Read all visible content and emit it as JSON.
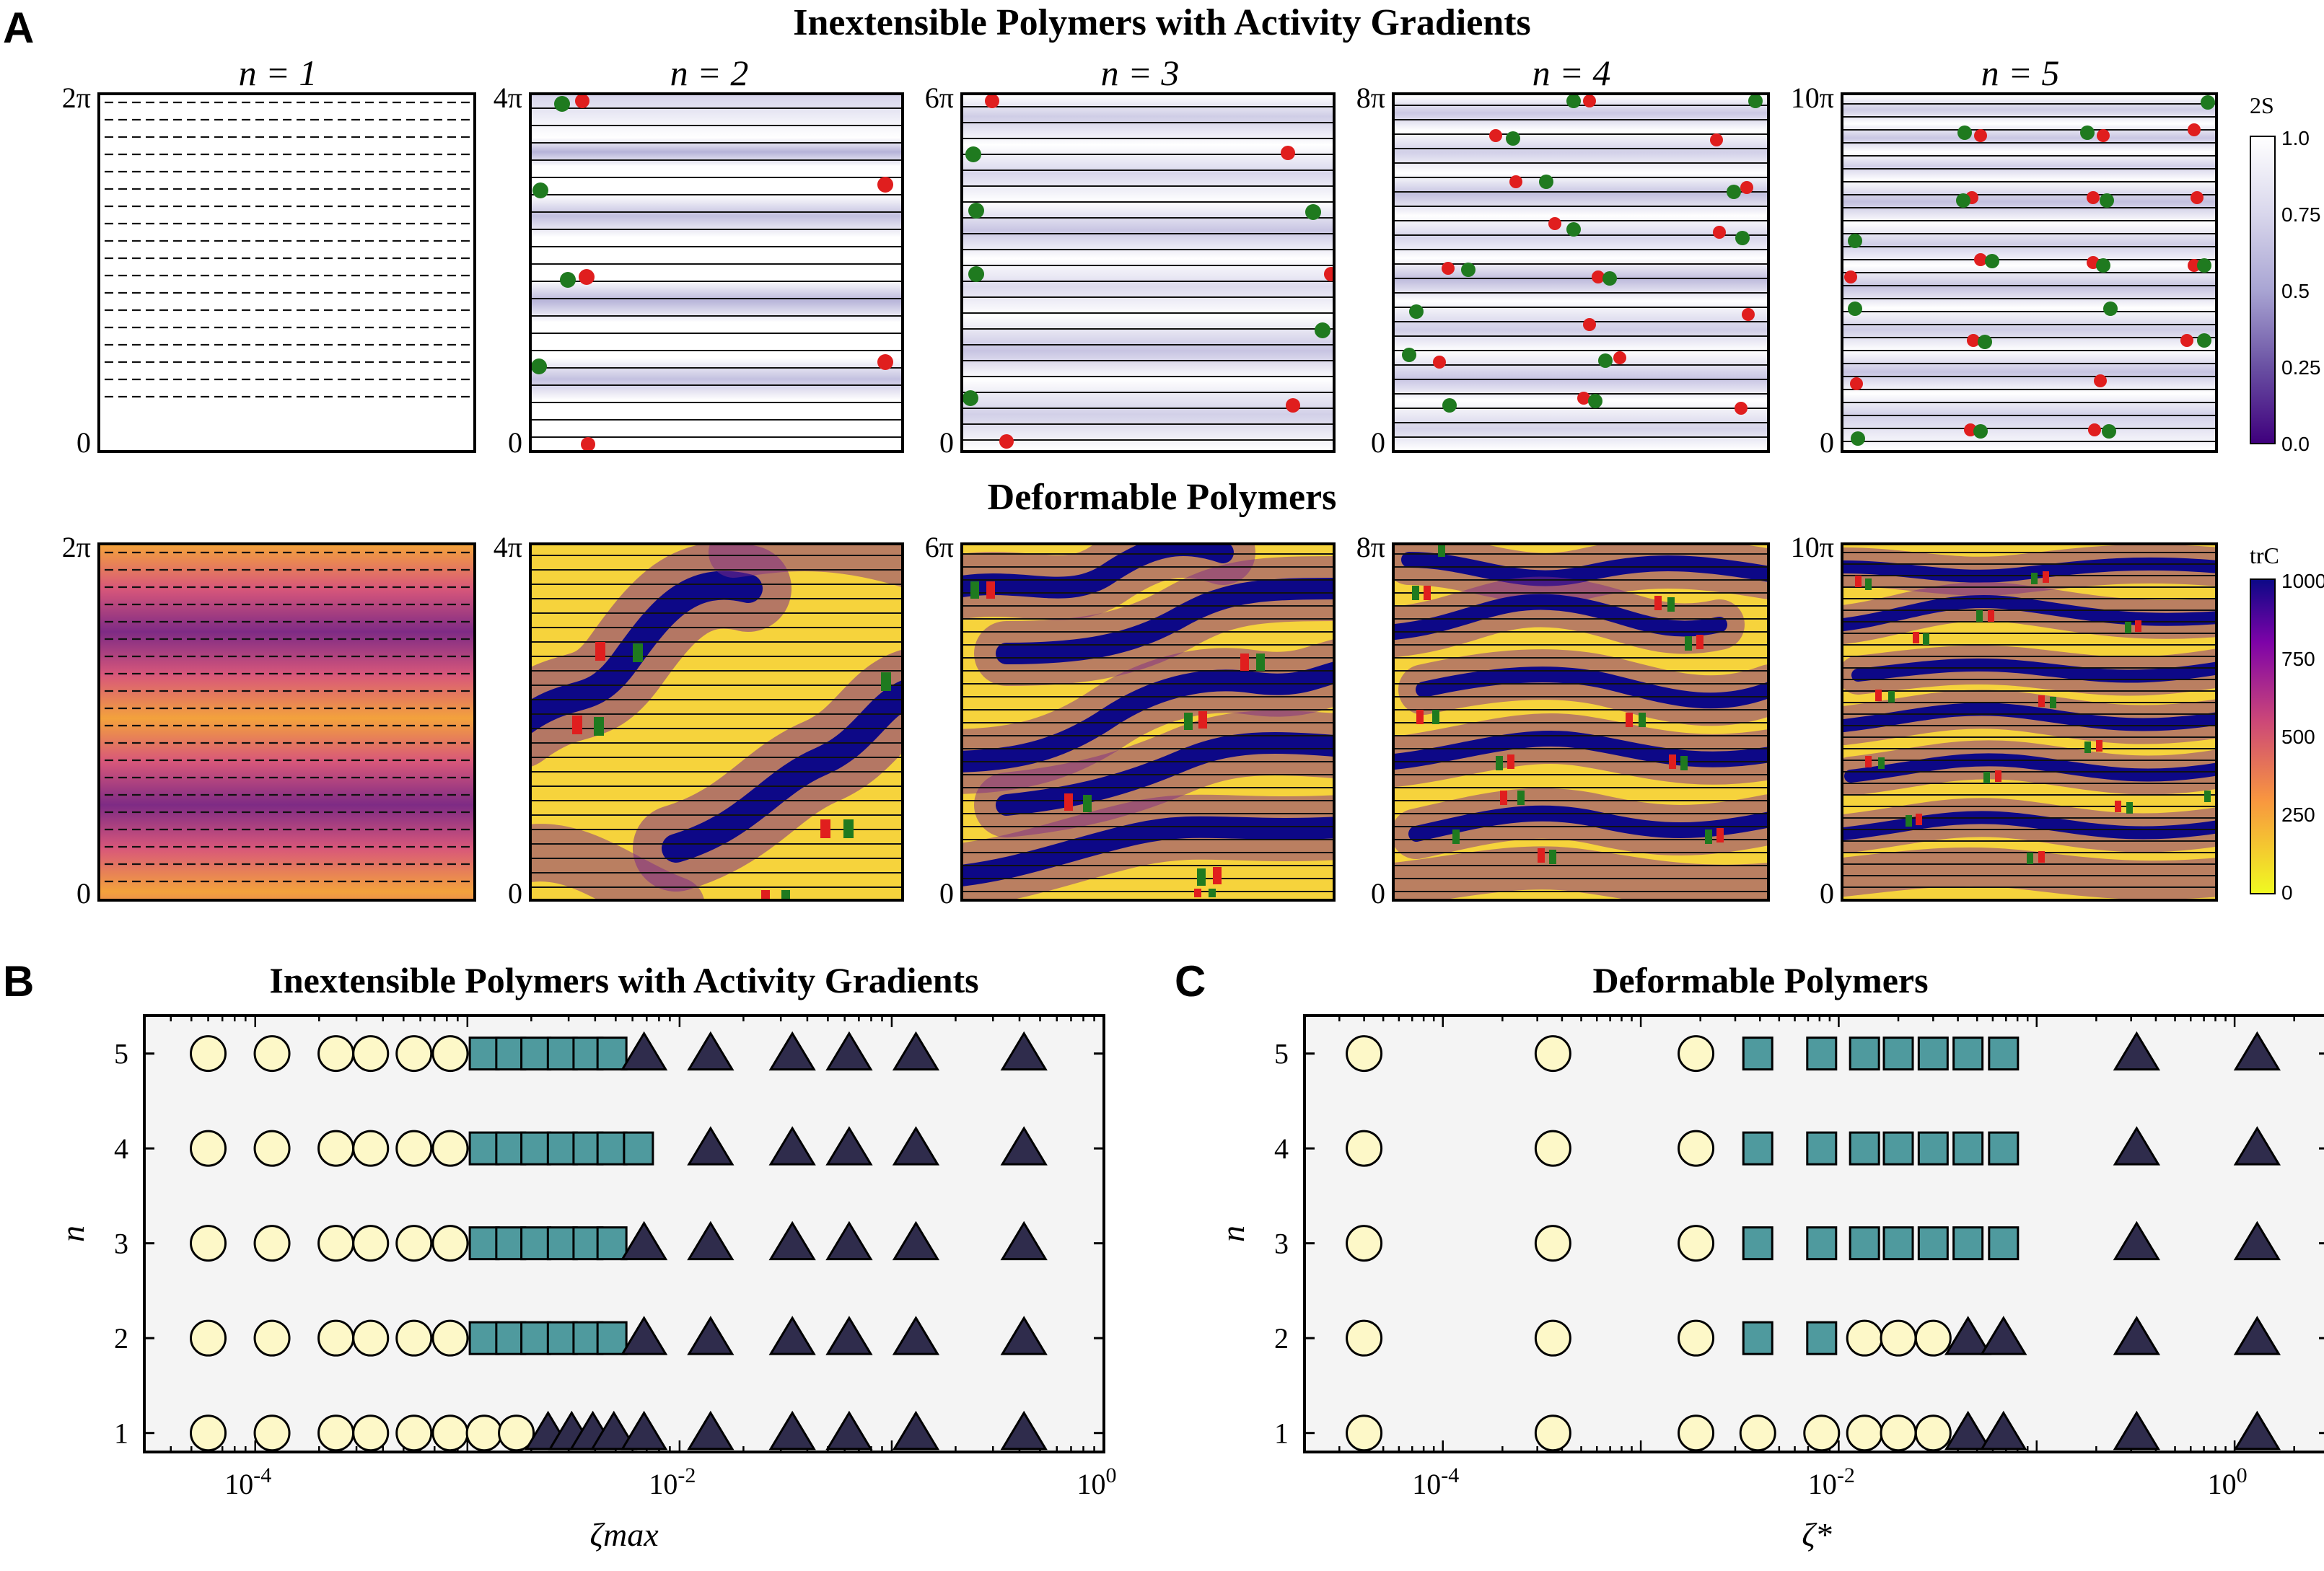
{
  "panel_letters": {
    "a": "A",
    "b": "B",
    "c": "C"
  },
  "row_titles": {
    "top": "Inextensible Polymers with Activity Gradients",
    "bottom": "Deformable Polymers"
  },
  "columns": [
    {
      "n_label": "n = 1",
      "y_top": "2π",
      "y_bottom": "0"
    },
    {
      "n_label": "n = 2",
      "y_top": "4π",
      "y_bottom": "0"
    },
    {
      "n_label": "n = 3",
      "y_top": "6π",
      "y_bottom": "0"
    },
    {
      "n_label": "n = 4",
      "y_top": "8π",
      "y_bottom": "0"
    },
    {
      "n_label": "n = 5",
      "y_top": "10π",
      "y_bottom": "0"
    }
  ],
  "colorbar_top": {
    "title": "2S",
    "ticks": [
      "1.0",
      "0.75",
      "0.5",
      "0.25",
      "0.0"
    ],
    "colors": {
      "high": "#ffffff",
      "mid": "#a9a5d3",
      "low": "#3f007d"
    }
  },
  "colorbar_bottom": {
    "title": "trC",
    "ticks": [
      "1000",
      "750",
      "500",
      "250",
      "0"
    ],
    "colors": {
      "high": "#0d0887",
      "mid": "#e16462",
      "low": "#f0f921"
    }
  },
  "markers": {
    "plus_defect": "#e01e1e",
    "minus_defect": "#1f7a1f"
  },
  "chart_data": [
    {
      "type": "scatter",
      "panel": "B",
      "title": "Inextensible Polymers with Activity Gradients",
      "xlabel": "ζmax",
      "ylabel": "n",
      "xscale": "log",
      "xlim": [
        3e-05,
        1
      ],
      "ylim": [
        0.8,
        5.4
      ],
      "xticklabels": [
        "10^-4",
        "10^-2",
        "10^0"
      ],
      "yticklabels": [
        "1",
        "2",
        "3",
        "4",
        "5"
      ],
      "legend_symbols": {
        "circle": "#fdf8c8",
        "square": "#4f9a9e",
        "triangle": "#2f2c4c"
      },
      "series": [
        {
          "name": "n=5",
          "n": 5,
          "circle": [
            6e-05,
            0.00012,
            0.00024,
            0.00035,
            0.00056,
            0.00083
          ],
          "square": [
            0.0012,
            0.0016,
            0.0021,
            0.0028,
            0.0037,
            0.0048
          ],
          "triangle": [
            0.0068,
            0.014,
            0.034,
            0.063,
            0.13,
            0.42
          ]
        },
        {
          "name": "n=4",
          "n": 4,
          "circle": [
            6e-05,
            0.00012,
            0.00024,
            0.00035,
            0.00056,
            0.00083
          ],
          "square": [
            0.0012,
            0.0016,
            0.0021,
            0.0028,
            0.0037,
            0.0048,
            0.0064
          ],
          "triangle": [
            0.014,
            0.034,
            0.063,
            0.13,
            0.42
          ]
        },
        {
          "name": "n=3",
          "n": 3,
          "circle": [
            6e-05,
            0.00012,
            0.00024,
            0.00035,
            0.00056,
            0.00083
          ],
          "square": [
            0.0012,
            0.0016,
            0.0021,
            0.0028,
            0.0037,
            0.0048
          ],
          "triangle": [
            0.0068,
            0.014,
            0.034,
            0.063,
            0.13,
            0.42
          ]
        },
        {
          "name": "n=2",
          "n": 2,
          "circle": [
            6e-05,
            0.00012,
            0.00024,
            0.00035,
            0.00056,
            0.00083
          ],
          "square": [
            0.0012,
            0.0016,
            0.0021,
            0.0028,
            0.0037,
            0.0048
          ],
          "triangle": [
            0.0068,
            0.014,
            0.034,
            0.063,
            0.13,
            0.42
          ]
        },
        {
          "name": "n=1",
          "n": 1,
          "circle": [
            6e-05,
            0.00012,
            0.00024,
            0.00035,
            0.00056,
            0.00083,
            0.0012,
            0.0017
          ],
          "square": [],
          "triangle": [
            0.0024,
            0.0031,
            0.0039,
            0.0049,
            0.0068,
            0.014,
            0.034,
            0.063,
            0.13,
            0.42
          ]
        }
      ]
    },
    {
      "type": "scatter",
      "panel": "C",
      "title": "Deformable Polymers",
      "xlabel": "ζ*",
      "ylabel": "n",
      "xscale": "log",
      "xlim": [
        2e-05,
        3
      ],
      "ylim": [
        0.8,
        5.4
      ],
      "xticklabels": [
        "10^-4",
        "10^-2",
        "10^0"
      ],
      "yticklabels": [
        "1",
        "2",
        "3",
        "4",
        "5"
      ],
      "legend_symbols": {
        "circle": "#fdf8c8",
        "square": "#4f9a9e",
        "triangle": "#2f2c4c"
      },
      "series": [
        {
          "name": "n=5",
          "n": 5,
          "circle": [
            4e-05,
            0.00036,
            0.0019
          ],
          "square": [
            0.0039,
            0.0082,
            0.0135,
            0.02,
            0.03,
            0.045,
            0.068
          ],
          "triangle": [
            0.32,
            1.3
          ]
        },
        {
          "name": "n=4",
          "n": 4,
          "circle": [
            4e-05,
            0.00036,
            0.0019
          ],
          "square": [
            0.0039,
            0.0082,
            0.0135,
            0.02,
            0.03,
            0.045,
            0.068
          ],
          "triangle": [
            0.32,
            1.3
          ]
        },
        {
          "name": "n=3",
          "n": 3,
          "circle": [
            4e-05,
            0.00036,
            0.0019
          ],
          "square": [
            0.0039,
            0.0082,
            0.0135,
            0.02,
            0.03,
            0.045,
            0.068
          ],
          "triangle": [
            0.32,
            1.3
          ]
        },
        {
          "name": "n=2",
          "n": 2,
          "circle": [
            4e-05,
            0.00036,
            0.0019,
            0.0135,
            0.02,
            0.03
          ],
          "square": [
            0.0039,
            0.0082
          ],
          "triangle": [
            0.045,
            0.068,
            0.32,
            1.3
          ]
        },
        {
          "name": "n=1",
          "n": 1,
          "circle": [
            4e-05,
            0.00036,
            0.0019,
            0.0039,
            0.0082,
            0.0135,
            0.02,
            0.03
          ],
          "square": [],
          "triangle": [
            0.045,
            0.068,
            0.32,
            1.3
          ]
        }
      ]
    }
  ]
}
